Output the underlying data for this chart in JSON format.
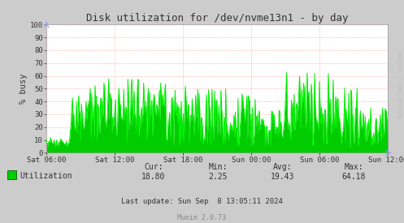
{
  "title": "Disk utilization for /dev/nvme13n1 - by day",
  "ylabel": "% busy",
  "ylim": [
    0,
    100
  ],
  "yticks": [
    0,
    10,
    20,
    30,
    40,
    50,
    60,
    70,
    80,
    90,
    100
  ],
  "xtick_labels": [
    "Sat 06:00",
    "Sat 12:00",
    "Sat 18:00",
    "Sun 00:00",
    "Sun 06:00",
    "Sun 12:00"
  ],
  "line_color": "#00EE00",
  "fill_color": "#00CC00",
  "background_color": "#CCCCCC",
  "plot_bg_color": "#FFFFFF",
  "grid_color": "#FF9999",
  "title_color": "#333333",
  "label_color": "#333333",
  "legend_label": "Utilization",
  "legend_color": "#00CC00",
  "legend_border": "#006600",
  "cur_val": "18.80",
  "min_val": "2.25",
  "avg_val": "19.43",
  "max_val": "64.18",
  "last_update": "Last update: Sun Sep  8 13:05:11 2024",
  "rrdtool_text": "RRDTOOL / TOBI OETIKER",
  "munin_text": "Munin 2.0.73",
  "num_points": 500
}
